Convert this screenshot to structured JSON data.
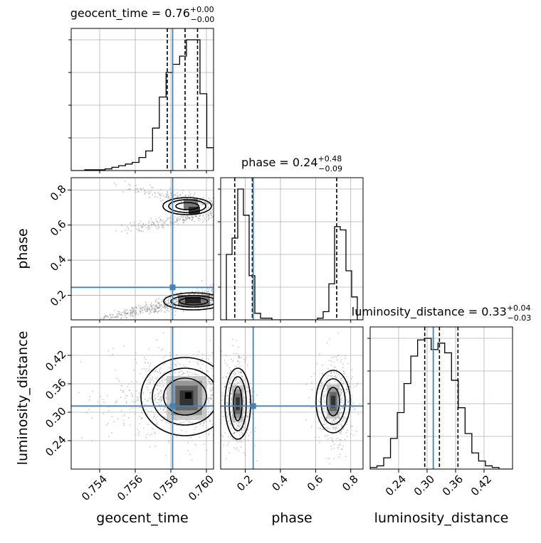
{
  "chart_data": {
    "type": "corner",
    "parameters": [
      "geocent_time",
      "phase",
      "luminosity_distance"
    ],
    "axis_labels": {
      "geocent_time": "geocent_time",
      "phase": "phase",
      "luminosity_distance": "luminosity_distance"
    },
    "ranges": {
      "geocent_time": [
        0.7524,
        0.7604
      ],
      "phase": [
        0.06,
        0.87
      ],
      "luminosity_distance": [
        0.18,
        0.48
      ]
    },
    "ticks": {
      "geocent_time": [
        "0.754",
        "0.756",
        "0.758",
        "0.760"
      ],
      "phase": [
        "0.2",
        "0.4",
        "0.6",
        "0.8"
      ],
      "luminosity_distance": [
        "0.24",
        "0.30",
        "0.36",
        "0.42"
      ]
    },
    "truths": {
      "geocent_time": 0.7581,
      "phase": 0.245,
      "luminosity_distance": 0.313
    },
    "titles": {
      "geocent_time": {
        "base": "geocent_time = 0.76",
        "sup": "+0.00",
        "sub": "−0.00"
      },
      "phase": {
        "base": "phase = 0.24",
        "sup": "+0.48",
        "sub": "−0.09"
      },
      "luminosity_distance": {
        "base": "luminosity_distance = 0.33",
        "sup": "+0.04",
        "sub": "−0.03"
      }
    },
    "quantiles": {
      "geocent_time": [
        0.7578,
        0.7588,
        0.7595
      ],
      "phase": [
        0.14,
        0.24,
        0.72
      ],
      "luminosity_distance": [
        0.295,
        0.326,
        0.365
      ]
    },
    "histograms": {
      "geocent_time": [
        0,
        0,
        0.5,
        0.5,
        0.5,
        1,
        2,
        3,
        4,
        5,
        8,
        12,
        26,
        45,
        60,
        65,
        70,
        80,
        80,
        47,
        14
      ],
      "phase": [
        0,
        40,
        50,
        80,
        64,
        27,
        4,
        1,
        1,
        0,
        0,
        0,
        0,
        0,
        0,
        0,
        0,
        1,
        5,
        22,
        57,
        55,
        30,
        14,
        0
      ],
      "luminosity_distance": [
        1,
        2,
        7,
        19,
        35,
        53,
        70,
        80,
        81,
        74,
        78,
        72,
        55,
        38,
        22,
        10,
        5,
        2,
        1,
        0,
        0
      ]
    },
    "grid": true
  }
}
